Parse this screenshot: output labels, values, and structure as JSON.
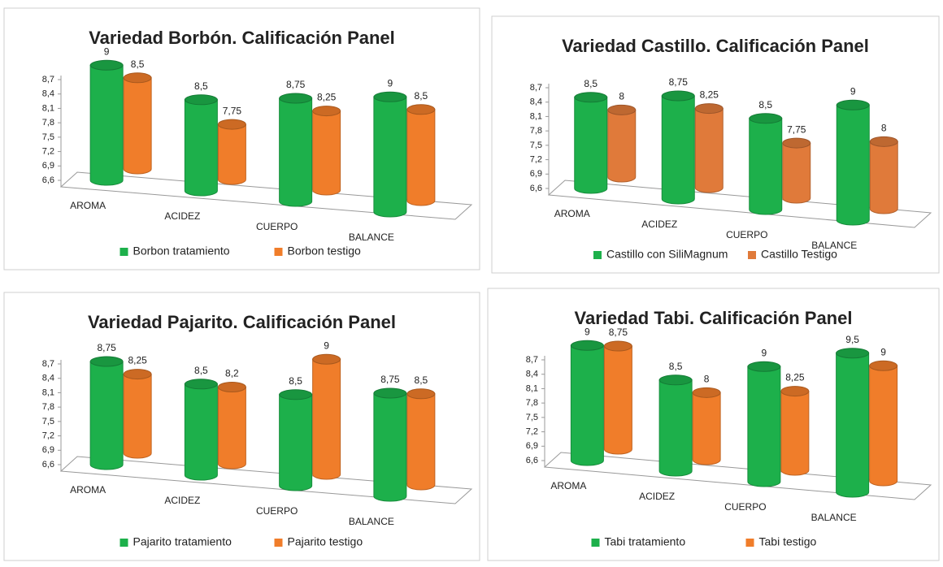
{
  "chart_data": [
    {
      "type": "bar3d",
      "title": "Variedad Borbón. Calificación Panel",
      "categories": [
        "AROMA",
        "ACIDEZ",
        "CUERPO",
        "BALANCE"
      ],
      "series": [
        {
          "name": "Borbon tratamiento",
          "color": "#1db04b",
          "values": [
            9,
            8.5,
            8.75,
            9
          ],
          "value_labels": [
            "9",
            "8,5",
            "8,75",
            "9"
          ]
        },
        {
          "name": "Borbon testigo",
          "color": "#f07d2a",
          "values": [
            8.5,
            7.75,
            8.25,
            8.5
          ],
          "value_labels": [
            "8,5",
            "7,75",
            "8,25",
            "8,5"
          ]
        }
      ],
      "ylim": [
        6.6,
        8.7
      ],
      "yticks": [
        {
          "value": 6.6,
          "label": "6,6"
        },
        {
          "value": 6.9,
          "label": "6,9"
        },
        {
          "value": 7.2,
          "label": "7,2"
        },
        {
          "value": 7.5,
          "label": "7,5"
        },
        {
          "value": 7.8,
          "label": "7,8"
        },
        {
          "value": 8.1,
          "label": "8,1"
        },
        {
          "value": 8.4,
          "label": "8,4"
        },
        {
          "value": 8.7,
          "label": "8,7"
        }
      ]
    },
    {
      "type": "bar3d",
      "title": "Variedad Castillo. Calificación Panel",
      "categories": [
        "AROMA",
        "ACIDEZ",
        "CUERPO",
        "BALANCE"
      ],
      "series": [
        {
          "name": "Castillo con SiliMagnum",
          "color": "#1db04b",
          "values": [
            8.5,
            8.75,
            8.5,
            9
          ],
          "value_labels": [
            "8,5",
            "8,75",
            "8,5",
            "9"
          ]
        },
        {
          "name": "Castillo Testigo",
          "color": "#e07a3a",
          "values": [
            8,
            8.25,
            7.75,
            8
          ],
          "value_labels": [
            "8",
            "8,25",
            "7,75",
            "8"
          ]
        }
      ],
      "ylim": [
        6.6,
        8.7
      ],
      "yticks": [
        {
          "value": 6.6,
          "label": "6,6"
        },
        {
          "value": 6.9,
          "label": "6,9"
        },
        {
          "value": 7.2,
          "label": "7,2"
        },
        {
          "value": 7.5,
          "label": "7,5"
        },
        {
          "value": 7.8,
          "label": "7,8"
        },
        {
          "value": 8.1,
          "label": "8,1"
        },
        {
          "value": 8.4,
          "label": "8,4"
        },
        {
          "value": 8.7,
          "label": "8,7"
        }
      ]
    },
    {
      "type": "bar3d",
      "title": "Variedad Pajarito. Calificación Panel",
      "categories": [
        "AROMA",
        "ACIDEZ",
        "CUERPO",
        "BALANCE"
      ],
      "series": [
        {
          "name": "Pajarito tratamiento",
          "color": "#1db04b",
          "values": [
            8.75,
            8.5,
            8.5,
            8.75
          ],
          "value_labels": [
            "8,75",
            "8,5",
            "8,5",
            "8,75"
          ]
        },
        {
          "name": "Pajarito testigo",
          "color": "#f07d2a",
          "values": [
            8.25,
            8.2,
            9,
            8.5
          ],
          "value_labels": [
            "8,25",
            "8,2",
            "9",
            "8,5"
          ]
        }
      ],
      "ylim": [
        6.6,
        8.7
      ],
      "yticks": [
        {
          "value": 6.6,
          "label": "6,6"
        },
        {
          "value": 6.9,
          "label": "6,9"
        },
        {
          "value": 7.2,
          "label": "7,2"
        },
        {
          "value": 7.5,
          "label": "7,5"
        },
        {
          "value": 7.8,
          "label": "7,8"
        },
        {
          "value": 8.1,
          "label": "8,1"
        },
        {
          "value": 8.4,
          "label": "8,4"
        },
        {
          "value": 8.7,
          "label": "8,7"
        }
      ]
    },
    {
      "type": "bar3d",
      "title": "Variedad Tabi. Calificación Panel",
      "categories": [
        "AROMA",
        "ACIDEZ",
        "CUERPO",
        "BALANCE"
      ],
      "series": [
        {
          "name": "Tabi tratamiento",
          "color": "#1db04b",
          "values": [
            9,
            8.5,
            9,
            9.5
          ],
          "value_labels": [
            "9",
            "8,5",
            "9",
            "9,5"
          ]
        },
        {
          "name": "Tabi testigo",
          "color": "#f07d2a",
          "values": [
            8.75,
            8,
            8.25,
            9
          ],
          "value_labels": [
            "8,75",
            "8",
            "8,25",
            "9"
          ]
        }
      ],
      "ylim": [
        6.6,
        8.7
      ],
      "yticks": [
        {
          "value": 6.6,
          "label": "6,6"
        },
        {
          "value": 6.9,
          "label": "6,9"
        },
        {
          "value": 7.2,
          "label": "7,2"
        },
        {
          "value": 7.5,
          "label": "7,5"
        },
        {
          "value": 7.8,
          "label": "7,8"
        },
        {
          "value": 8.1,
          "label": "8,1"
        },
        {
          "value": 8.4,
          "label": "8,4"
        },
        {
          "value": 8.7,
          "label": "8,7"
        }
      ]
    }
  ]
}
